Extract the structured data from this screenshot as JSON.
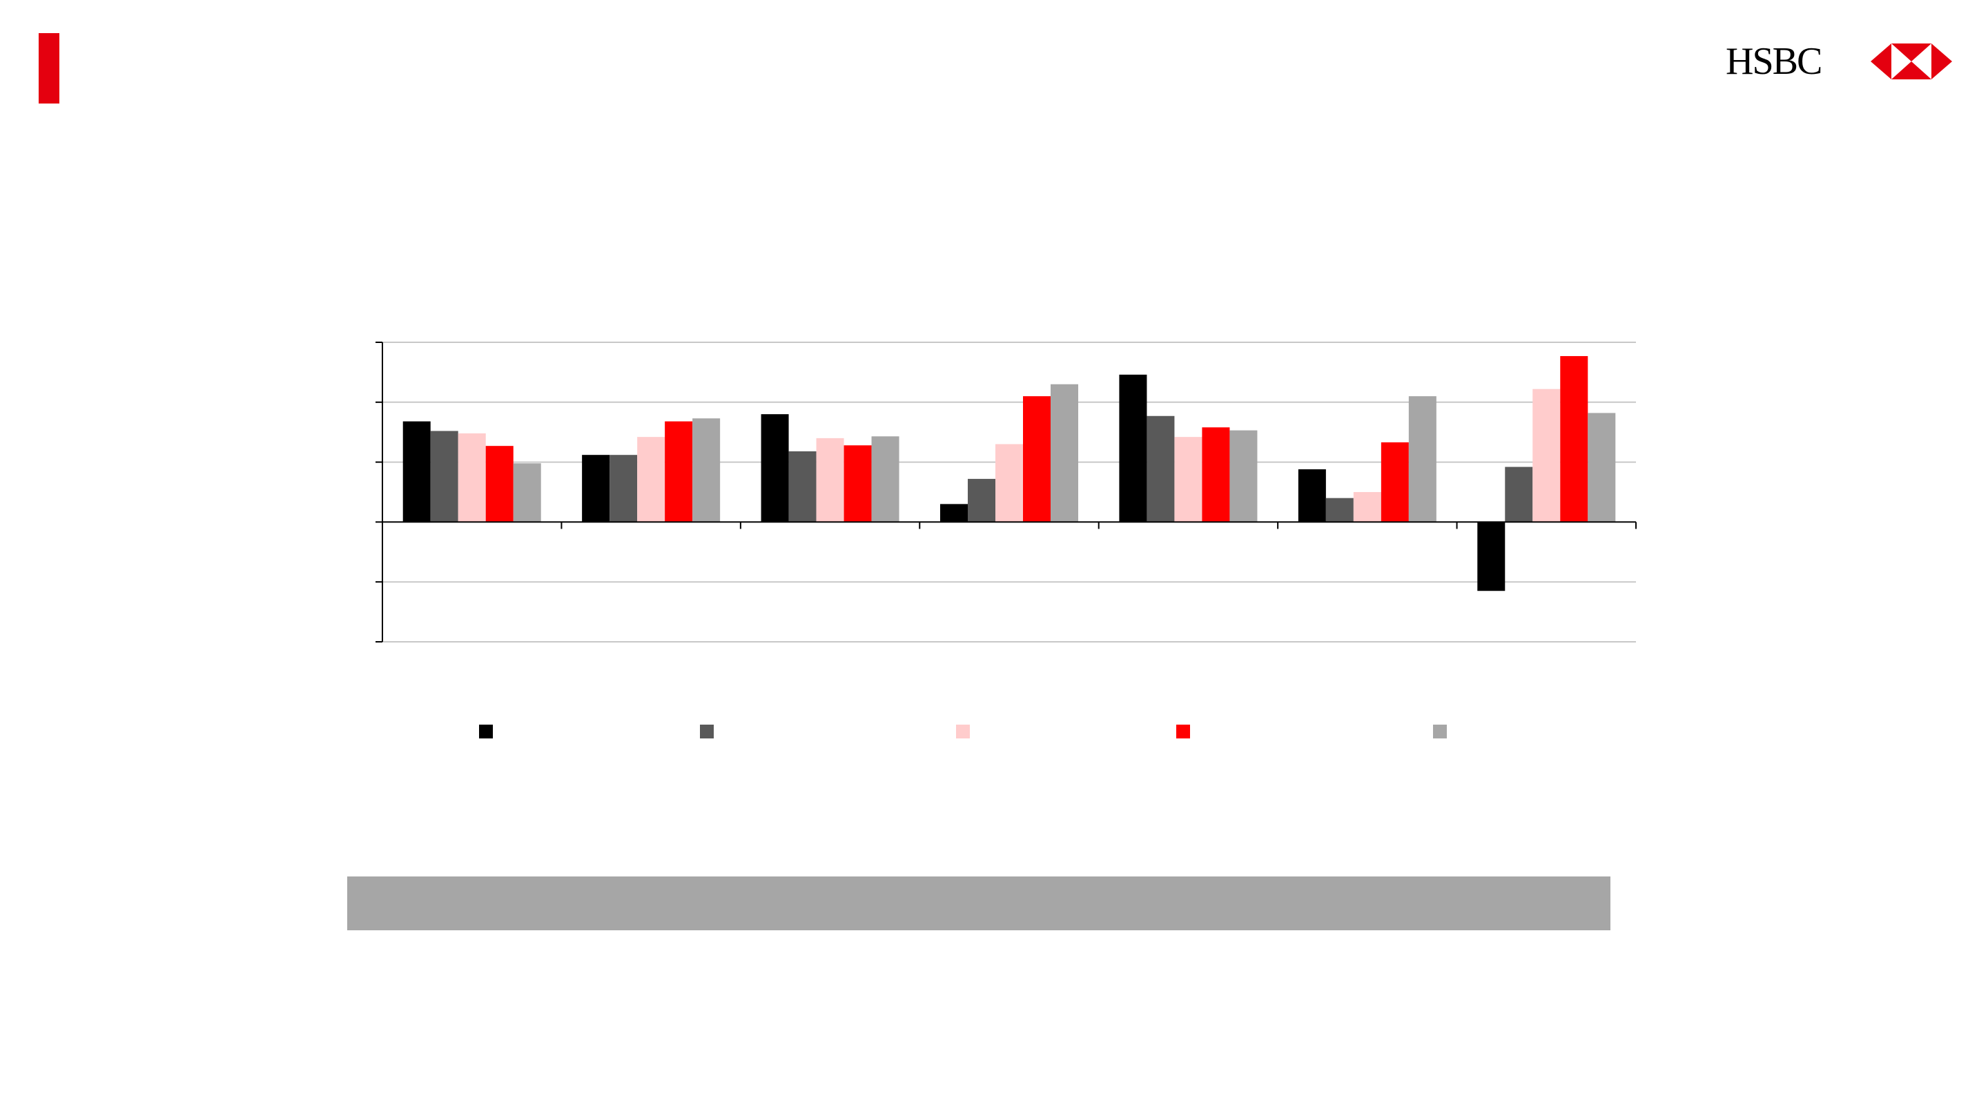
{
  "brand": {
    "logo_text": "HSBC",
    "logo_icon": "hsbc-hexagon-icon",
    "accent_color": "#e4000f"
  },
  "chart_data": {
    "type": "bar",
    "categories": [
      "",
      "",
      "",
      "",
      "",
      "",
      ""
    ],
    "series": [
      {
        "color": "#000000",
        "values": [
          1.68,
          1.12,
          1.8,
          0.3,
          2.46,
          0.88,
          -1.15
        ]
      },
      {
        "color": "#595959",
        "values": [
          1.52,
          1.12,
          1.18,
          0.72,
          1.77,
          0.4,
          0.92
        ]
      },
      {
        "color": "#ffcccc",
        "values": [
          1.48,
          1.42,
          1.4,
          1.3,
          1.42,
          0.5,
          2.22
        ]
      },
      {
        "color": "#ff0000",
        "values": [
          1.27,
          1.68,
          1.28,
          2.1,
          1.58,
          1.33,
          2.77
        ]
      },
      {
        "color": "#a6a6a6",
        "values": [
          0.98,
          1.73,
          1.43,
          2.3,
          1.53,
          2.1,
          1.82
        ]
      }
    ],
    "ylim": [
      -2,
      3
    ],
    "yticks": [
      -2,
      -1,
      0,
      1,
      2,
      3
    ],
    "grid": true,
    "legend_position": "bottom"
  }
}
